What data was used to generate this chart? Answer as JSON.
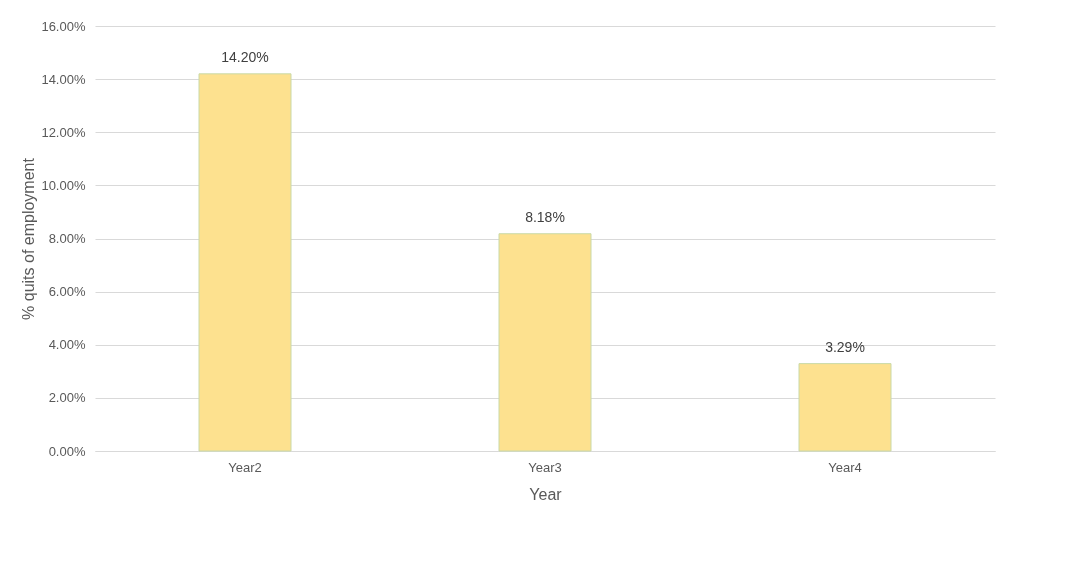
{
  "chart_data": {
    "type": "bar",
    "xlabel": "Year",
    "ylabel": "% quits of employment",
    "categories": [
      "Year2",
      "Year3",
      "Year4"
    ],
    "values": [
      14.2,
      8.18,
      3.29
    ],
    "value_labels": [
      "14.20%",
      "8.18%",
      "3.29%"
    ],
    "color": "#fde18f",
    "ylim": [
      0,
      16
    ],
    "yticks": [
      {
        "value": 0,
        "label": "0.00%"
      },
      {
        "value": 2,
        "label": "2.00%"
      },
      {
        "value": 4,
        "label": "4.00%"
      },
      {
        "value": 6,
        "label": "6.00%"
      },
      {
        "value": 8,
        "label": "8.00%"
      },
      {
        "value": 10,
        "label": "10.00%"
      },
      {
        "value": 12,
        "label": "12.00%"
      },
      {
        "value": 14,
        "label": "14.00%"
      },
      {
        "value": 16,
        "label": "16.00%"
      }
    ],
    "grid": "y"
  }
}
